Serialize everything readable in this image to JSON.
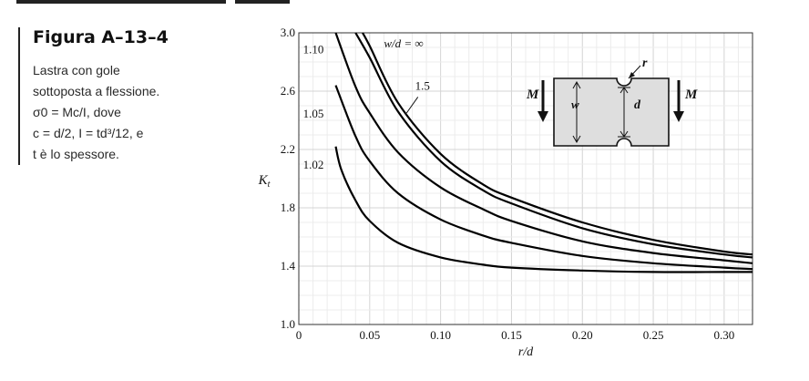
{
  "caption": {
    "title": "Figura A–13–4",
    "lines": [
      "Lastra con gole",
      "sottoposta a flessione.",
      "σ0 = Mc/I, dove",
      "c = d/2, I = td³/12, e",
      "t è lo spessore."
    ]
  },
  "chart_data": {
    "type": "line",
    "title": "",
    "xlabel": "r/d",
    "ylabel": "Kt",
    "xlim": [
      0,
      0.32
    ],
    "ylim": [
      1.0,
      3.0
    ],
    "xticks": [
      0,
      0.05,
      0.1,
      0.15,
      0.2,
      0.25,
      0.3
    ],
    "xtick_labels": [
      "0",
      "0.05",
      "0.10",
      "0.15",
      "0.20",
      "0.25",
      "0.30"
    ],
    "yticks": [
      1.0,
      1.4,
      1.8,
      2.2,
      2.6,
      3.0
    ],
    "ytick_labels": [
      "1.0",
      "1.4",
      "1.8",
      "2.2",
      "2.6",
      "3.0"
    ],
    "grid": true,
    "series": [
      {
        "name": "w/d = ∞",
        "x": [
          0.045,
          0.05,
          0.07,
          0.1,
          0.13,
          0.15,
          0.2,
          0.25,
          0.3,
          0.32
        ],
        "values": [
          3.0,
          2.91,
          2.52,
          2.17,
          1.96,
          1.87,
          1.7,
          1.58,
          1.5,
          1.48
        ]
      },
      {
        "name": "1.5",
        "x": [
          0.04,
          0.05,
          0.07,
          0.1,
          0.13,
          0.15,
          0.2,
          0.25,
          0.3,
          0.32
        ],
        "values": [
          3.0,
          2.83,
          2.46,
          2.12,
          1.92,
          1.83,
          1.66,
          1.55,
          1.48,
          1.46
        ]
      },
      {
        "name": "1.10",
        "x": [
          0.026,
          0.04,
          0.05,
          0.07,
          0.1,
          0.13,
          0.15,
          0.2,
          0.25,
          0.3,
          0.32
        ],
        "values": [
          3.0,
          2.63,
          2.45,
          2.18,
          1.94,
          1.79,
          1.71,
          1.57,
          1.49,
          1.44,
          1.42
        ]
      },
      {
        "name": "1.05",
        "x": [
          0.026,
          0.04,
          0.05,
          0.07,
          0.1,
          0.13,
          0.15,
          0.2,
          0.25,
          0.3,
          0.32
        ],
        "values": [
          2.64,
          2.29,
          2.12,
          1.9,
          1.72,
          1.61,
          1.56,
          1.47,
          1.42,
          1.39,
          1.38
        ]
      },
      {
        "name": "1.02",
        "x": [
          0.026,
          0.03,
          0.04,
          0.05,
          0.07,
          0.1,
          0.13,
          0.15,
          0.2,
          0.25,
          0.3,
          0.32
        ],
        "values": [
          2.22,
          2.06,
          1.85,
          1.71,
          1.56,
          1.46,
          1.41,
          1.39,
          1.37,
          1.36,
          1.36,
          1.36
        ]
      }
    ],
    "diagram": {
      "labels": [
        "M",
        "M",
        "w",
        "d",
        "r"
      ]
    }
  }
}
